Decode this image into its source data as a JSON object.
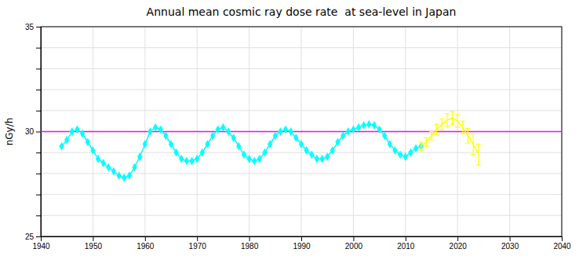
{
  "chart_data": {
    "type": "line",
    "title": "Annual mean cosmic ray dose rate  at sea-level in Japan",
    "ylabel": "nGy/h",
    "xlim": [
      1940,
      2040
    ],
    "ylim": [
      25,
      35
    ],
    "xticks": [
      1940,
      1950,
      1960,
      1970,
      1980,
      1990,
      2000,
      2010,
      2020,
      2030,
      2040
    ],
    "yticks": [
      25,
      {
        "value": 26,
        "label": null
      },
      {
        "value": 27,
        "label": null
      },
      {
        "value": 28,
        "label": null
      },
      {
        "value": 29,
        "label": null
      },
      30,
      {
        "value": 31,
        "label": null
      },
      {
        "value": 32,
        "label": null
      },
      {
        "value": 33,
        "label": null
      },
      {
        "value": 34,
        "label": null
      },
      35
    ],
    "grid": true,
    "reference_lines": [
      {
        "y": 30.0,
        "color": "#FF00FF"
      }
    ],
    "series": [
      {
        "color": "#00FFFF",
        "marker": "diamond",
        "x": [
          1944,
          1945,
          1946,
          1947,
          1948,
          1949,
          1950,
          1951,
          1952,
          1953,
          1954,
          1955,
          1956,
          1957,
          1958,
          1959,
          1960,
          1961,
          1962,
          1963,
          1964,
          1965,
          1966,
          1967,
          1968,
          1969,
          1970,
          1971,
          1972,
          1973,
          1974,
          1975,
          1976,
          1977,
          1978,
          1979,
          1980,
          1981,
          1982,
          1983,
          1984,
          1985,
          1986,
          1987,
          1988,
          1989,
          1990,
          1991,
          1992,
          1993,
          1994,
          1995,
          1996,
          1997,
          1998,
          1999,
          2000,
          2001,
          2002,
          2003,
          2004,
          2005,
          2006,
          2007,
          2008,
          2009,
          2010,
          2011,
          2012,
          2013
        ],
        "values": [
          29.3,
          29.6,
          30.0,
          30.1,
          29.9,
          29.5,
          29.1,
          28.7,
          28.5,
          28.3,
          28.1,
          27.9,
          27.8,
          27.9,
          28.3,
          28.8,
          29.4,
          30.0,
          30.2,
          30.1,
          29.8,
          29.4,
          29.0,
          28.7,
          28.6,
          28.6,
          28.7,
          29.0,
          29.4,
          29.8,
          30.1,
          30.2,
          30.0,
          29.7,
          29.3,
          28.9,
          28.7,
          28.6,
          28.7,
          29.0,
          29.4,
          29.8,
          30.0,
          30.1,
          30.0,
          29.7,
          29.4,
          29.1,
          28.9,
          28.7,
          28.7,
          28.8,
          29.1,
          29.5,
          29.8,
          30.0,
          30.1,
          30.2,
          30.3,
          30.35,
          30.3,
          30.1,
          29.8,
          29.4,
          29.1,
          28.9,
          28.8,
          29.0,
          29.2,
          29.3
        ]
      },
      {
        "color": "#FFFF00",
        "marker": "none",
        "x": [
          2013,
          2014,
          2015,
          2016,
          2017,
          2018,
          2019,
          2020,
          2021,
          2022,
          2023,
          2024
        ],
        "values": [
          29.3,
          29.5,
          29.8,
          30.1,
          30.35,
          30.55,
          30.65,
          30.5,
          30.2,
          29.8,
          29.4,
          28.9
        ],
        "errors": [
          0.2,
          0.2,
          0.2,
          0.25,
          0.25,
          0.3,
          0.3,
          0.3,
          0.3,
          0.35,
          0.5,
          0.5
        ]
      }
    ]
  }
}
